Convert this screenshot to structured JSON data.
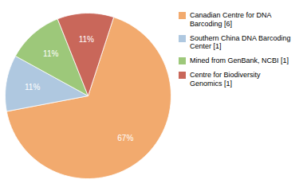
{
  "chart_data": {
    "type": "pie",
    "categories": [
      "Canadian Centre for DNA\nBarcoding [6]",
      "Southern China DNA Barcoding\nCenter [1]",
      "Mined from GenBank, NCBI [1]",
      "Centre for Biodiversity\nGenomics [1]"
    ],
    "values": [
      67,
      11,
      11,
      11
    ],
    "value_labels": [
      "67%",
      "11%",
      "11%",
      "11%"
    ],
    "colors": [
      "#f2aa6e",
      "#afc8e0",
      "#9dc87a",
      "#c9675a"
    ],
    "data_labels": true,
    "legend": "right"
  }
}
